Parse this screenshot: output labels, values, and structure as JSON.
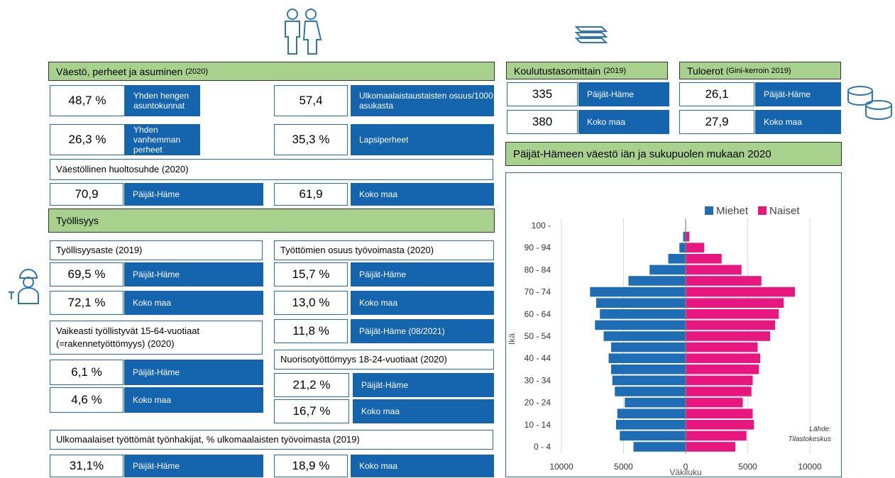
{
  "vaesto": {
    "title": "Väestö, perheet ja asuminen",
    "year": "(2020)",
    "items": [
      {
        "value": "48,7 %",
        "label": "Yhden hengen asuntokunnat"
      },
      {
        "value": "57,4",
        "label": "Ulkomaalaistaustaisten osuus/1000 asukasta"
      },
      {
        "value": "26,3 %",
        "label": "Yhden vanhemman perheet"
      },
      {
        "value": "35,3 %",
        "label": "Lapsiperheet"
      }
    ]
  },
  "huoltosuhde": {
    "title": "Väestöllinen huoltosuhde (2020)",
    "items": [
      {
        "value": "70,9",
        "label": "Päijät-Häme"
      },
      {
        "value": "61,9",
        "label": "Koko maa"
      }
    ]
  },
  "tyollisyys": {
    "title": "Työllisyys"
  },
  "tyollisyysaste": {
    "title": "Työllisyysaste (2019)",
    "items": [
      {
        "value": "69,5 %",
        "label": "Päijät-Häme"
      },
      {
        "value": "72,1 %",
        "label": "Koko maa"
      }
    ]
  },
  "tyottomat": {
    "title": "Työttömien osuus työvoimasta (2020)",
    "items": [
      {
        "value": "15,7 %",
        "label": "Päijät-Häme"
      },
      {
        "value": "13,0 %",
        "label": "Koko maa"
      },
      {
        "value": "11,8 %",
        "label": "Päijät-Häme (08/2021)"
      }
    ]
  },
  "vaikeasti": {
    "title": "Vaikeasti työllistyvät 15-64-vuotiaat (=rakennetyöttömyys) (2020)",
    "items": [
      {
        "value": "6,1 %",
        "label": "Päijät-Häme"
      },
      {
        "value": "4,6 %",
        "label": "Koko maa"
      }
    ]
  },
  "nuoriso": {
    "title": "Nuorisotyöttömyys 18-24-vuotiaat (2020)",
    "items": [
      {
        "value": "21,2 %",
        "label": "Päijät-Häme"
      },
      {
        "value": "16,7 %",
        "label": "Koko maa"
      }
    ]
  },
  "ulkomaalaiset": {
    "title": "Ulkomaalaiset työttömät työnhakijat, % ulkomaalaisten työvoimasta (2019)",
    "items": [
      {
        "value": "31,1%",
        "label": "Päijät-Häme"
      },
      {
        "value": "18,9 %",
        "label": "Koko maa"
      }
    ]
  },
  "koulutus": {
    "title": "Koulutustasomittain",
    "year": "(2019)",
    "items": [
      {
        "value": "335",
        "label": "Päijät-Häme"
      },
      {
        "value": "380",
        "label": "Koko maa"
      }
    ]
  },
  "tuloerot": {
    "title": "Tuloerot",
    "year": "(Gini-kerroin 2019)",
    "items": [
      {
        "value": "26,1",
        "label": "Päijät-Häme"
      },
      {
        "value": "27,9",
        "label": "Koko maa"
      }
    ]
  },
  "chart_data": {
    "type": "pyramid",
    "title": "Päijät-Hämeen väestö iän ja sukupuolen mukaan 2020",
    "xlabel": "Väkiluku",
    "ylabel": "Ikä",
    "annotation": [
      "Lähde:",
      "Tilastokeskus"
    ],
    "categories": [
      "0 - 4",
      null,
      "10 - 14",
      null,
      "20 - 24",
      null,
      "30 - 34",
      null,
      "40 - 44",
      null,
      "50 - 54",
      null,
      "60 - 64",
      null,
      "70 - 74",
      null,
      "80 - 84",
      null,
      "90 - 94",
      null,
      "100 -"
    ],
    "series": [
      {
        "name": "Miehet",
        "color": "#1f6db5",
        "values": [
          -4200,
          -5300,
          -5600,
          -5500,
          -4900,
          -5700,
          -5900,
          -6000,
          -6200,
          -6000,
          -6600,
          -7300,
          -6900,
          -7200,
          -7700,
          -4600,
          -2900,
          -1400,
          -500,
          -200,
          -20
        ]
      },
      {
        "name": "Naiset",
        "color": "#e8177f",
        "values": [
          4000,
          4900,
          5500,
          5400,
          4600,
          5300,
          5400,
          5900,
          6000,
          5800,
          6800,
          7200,
          7500,
          7900,
          8800,
          6100,
          4500,
          2900,
          1500,
          300,
          40
        ]
      }
    ],
    "xlim": [
      -10000,
      10000
    ],
    "xticks": [
      {
        "value": -10000,
        "label": "10000"
      },
      {
        "value": -5000,
        "label": "5000"
      },
      0,
      5000,
      10000
    ],
    "grid": true,
    "legend": "top"
  }
}
